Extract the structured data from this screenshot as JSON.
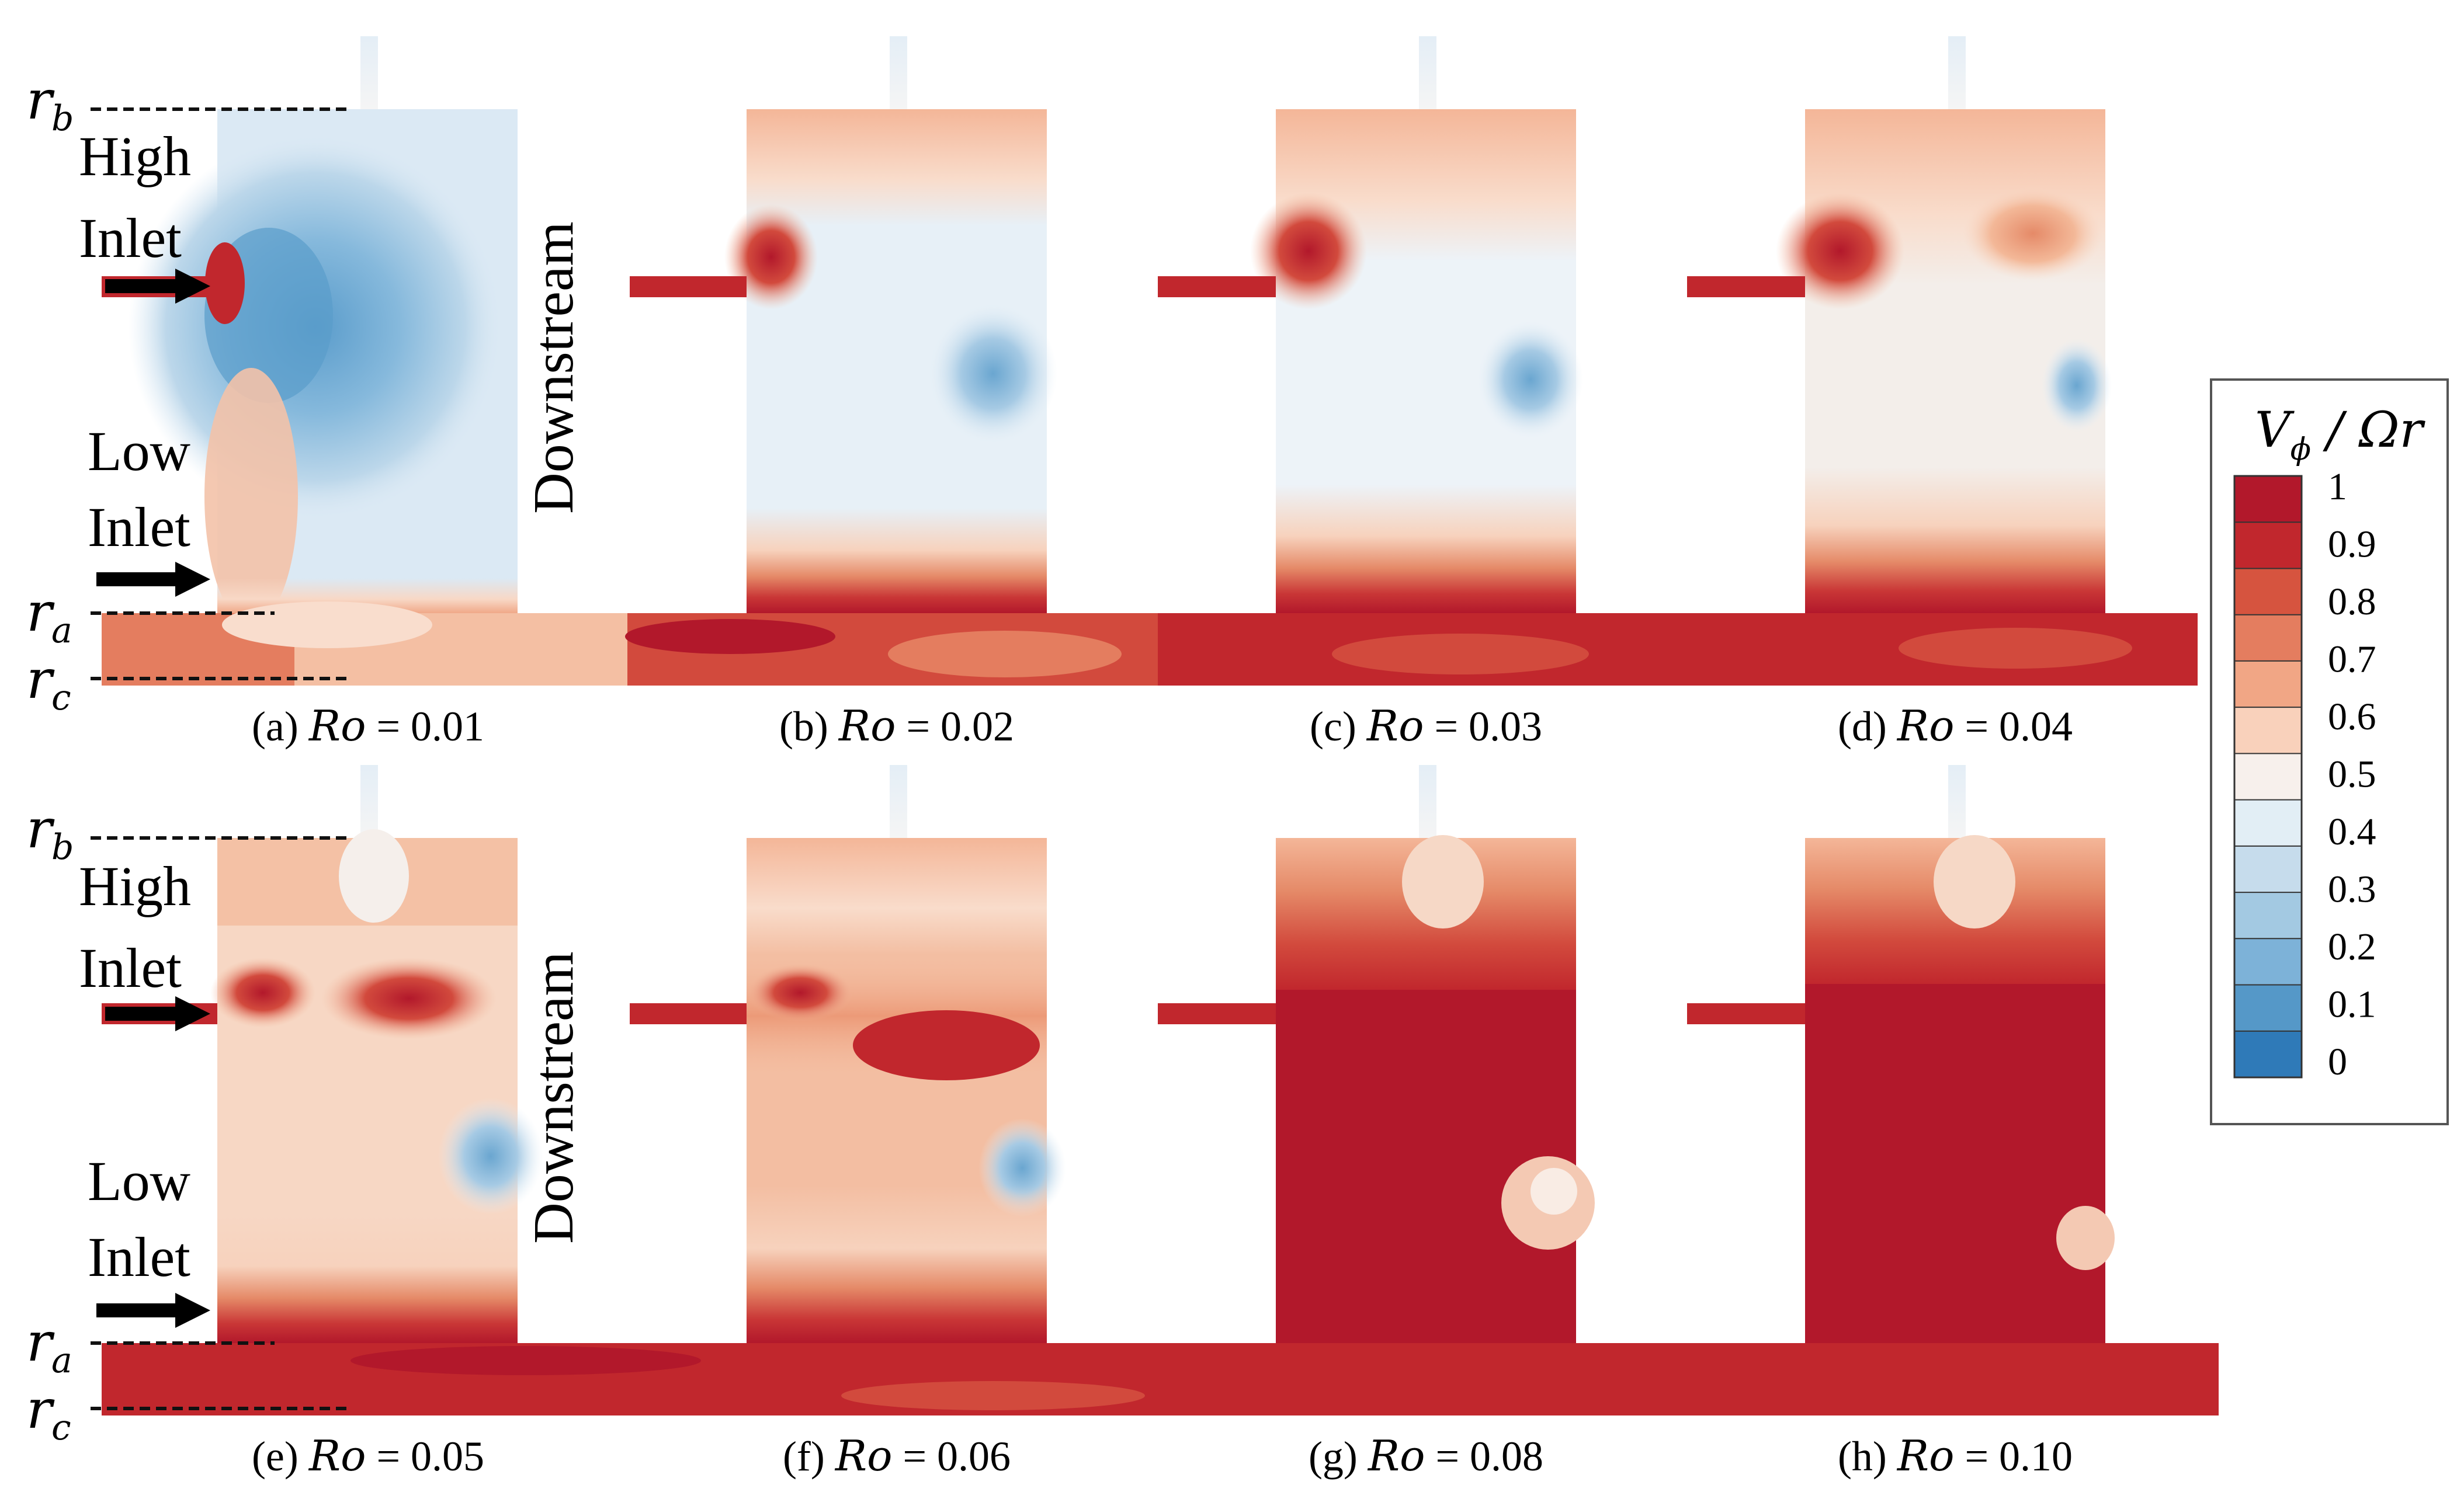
{
  "labels": {
    "r_b": "r",
    "r_b_sub": "b",
    "r_a": "r",
    "r_a_sub": "a",
    "r_c": "r",
    "r_c_sub": "c",
    "high_inlet_line1": "High",
    "high_inlet_line2": "Inlet",
    "low_inlet_line1": "Low",
    "low_inlet_line2": "Inlet",
    "downstream": "Downstream"
  },
  "panels": [
    {
      "id": "a",
      "caption_prefix": "(a) ",
      "caption_var": "Ro",
      "caption_eq": " = 0.01"
    },
    {
      "id": "b",
      "caption_prefix": "(b) ",
      "caption_var": "Ro",
      "caption_eq": " = 0.02"
    },
    {
      "id": "c",
      "caption_prefix": "(c) ",
      "caption_var": "Ro",
      "caption_eq": " = 0.03"
    },
    {
      "id": "d",
      "caption_prefix": "(d) ",
      "caption_var": "Ro",
      "caption_eq": " = 0.04"
    },
    {
      "id": "e",
      "caption_prefix": "(e) ",
      "caption_var": "Ro",
      "caption_eq": " = 0.05"
    },
    {
      "id": "f",
      "caption_prefix": "(f) ",
      "caption_var": "Ro",
      "caption_eq": " = 0.06"
    },
    {
      "id": "g",
      "caption_prefix": "(g) ",
      "caption_var": "Ro",
      "caption_eq": " = 0.08"
    },
    {
      "id": "h",
      "caption_prefix": "(h) ",
      "caption_var": "Ro",
      "caption_eq": " = 0.10"
    }
  ],
  "colorbar": {
    "title_num": "V",
    "title_num_sub": "ϕ",
    "title_den": " / Ωr",
    "ticks": [
      "1",
      "0.9",
      "0.8",
      "0.7",
      "0.6",
      "0.5",
      "0.4",
      "0.3",
      "0.2",
      "0.1",
      "0"
    ],
    "colors": [
      "#b2182b",
      "#c1272d",
      "#d6543f",
      "#e47d5f",
      "#f1a685",
      "#f9d1bb",
      "#f7f0ec",
      "#e2eef5",
      "#c6dcec",
      "#a3c9e2",
      "#7db2d8",
      "#5598c8",
      "#2f7ab8"
    ]
  }
}
